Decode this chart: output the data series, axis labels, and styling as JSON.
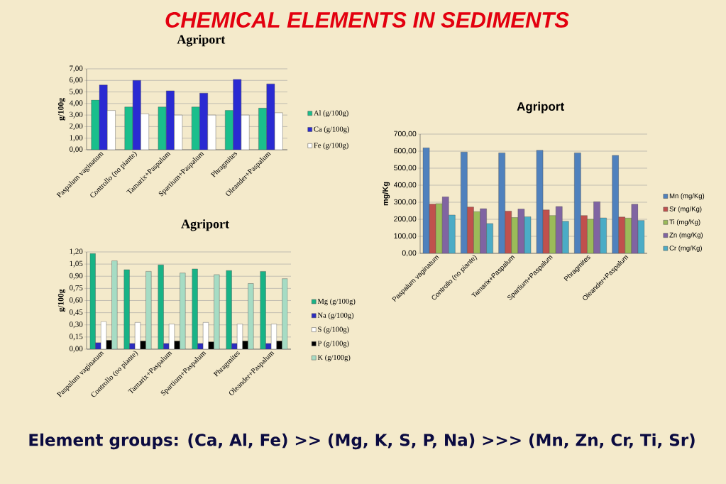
{
  "chart_data": [
    {
      "type": "other",
      "title": "CHEMICAL ELEMENTS IN SEDIMENTS",
      "annotations": [
        "Element groups: (Ca, Al, Fe) >> (Mg, K, S, P, Na) >>> (Mn, Zn, Cr, Ti, Sr)"
      ]
    },
    {
      "type": "bar",
      "title": "Agriport",
      "ylabel": "g/100g",
      "categories": [
        "Paspalum vaginatum",
        "Controllo (no piante)",
        "Tamarix+Paspalum",
        "Spartium+Paspalum",
        "Phragmites",
        "Oleander+Paspalum"
      ],
      "series": [
        {
          "name": "Al (g/100g)",
          "color": "#1abf8c",
          "values": [
            4.3,
            3.7,
            3.7,
            3.7,
            3.4,
            3.6
          ]
        },
        {
          "name": "Ca (g/100g)",
          "color": "#2a2ad2",
          "values": [
            5.6,
            6.0,
            5.1,
            4.9,
            6.1,
            5.7
          ]
        },
        {
          "name": "Fe (g/100g)",
          "color": "#ffffff",
          "values": [
            3.4,
            3.1,
            3.0,
            3.0,
            3.0,
            3.2
          ]
        }
      ],
      "ylim": [
        0,
        7
      ],
      "yticks": [
        {
          "value": 0,
          "label": "0,00"
        },
        {
          "value": 1,
          "label": "1,00"
        },
        {
          "value": 2,
          "label": "2,00"
        },
        {
          "value": 3,
          "label": "3,00"
        },
        {
          "value": 4,
          "label": "4,00"
        },
        {
          "value": 5,
          "label": "5,00"
        },
        {
          "value": 6,
          "label": "6,00"
        },
        {
          "value": 7,
          "label": "7,00"
        }
      ],
      "grid": "y",
      "legend": "right"
    },
    {
      "type": "bar",
      "title": "Agriport",
      "ylabel": "g/100g",
      "categories": [
        "Paspalum vaginatum",
        "Controllo (no piante)",
        "Tamarix+Paspalum",
        "Spartium+Paspalum",
        "Phragmites",
        "Oleander+Paspalum"
      ],
      "series": [
        {
          "name": "Mg (g/100g)",
          "color": "#18b386",
          "values": [
            1.18,
            0.98,
            1.04,
            0.99,
            0.97,
            0.96
          ]
        },
        {
          "name": "Na (g/100g)",
          "color": "#2c2cc0",
          "values": [
            0.08,
            0.07,
            0.07,
            0.07,
            0.07,
            0.07
          ]
        },
        {
          "name": "S (g/100g)",
          "color": "#ffffff",
          "values": [
            0.34,
            0.33,
            0.31,
            0.33,
            0.31,
            0.31
          ]
        },
        {
          "name": "P (g/100g)",
          "color": "#000000",
          "values": [
            0.11,
            0.1,
            0.1,
            0.09,
            0.1,
            0.1
          ]
        },
        {
          "name": "K (g/100g)",
          "color": "#a6dcc4",
          "values": [
            1.09,
            0.96,
            0.94,
            0.92,
            0.81,
            0.87
          ]
        }
      ],
      "ylim": [
        0,
        1.2
      ],
      "yticks": [
        {
          "value": 0,
          "label": "0,00"
        },
        {
          "value": 0.15,
          "label": "0,15"
        },
        {
          "value": 0.3,
          "label": "0,30"
        },
        {
          "value": 0.45,
          "label": "0,45"
        },
        {
          "value": 0.6,
          "label": "0,60"
        },
        {
          "value": 0.75,
          "label": "0,75"
        },
        {
          "value": 0.9,
          "label": "0,90"
        },
        {
          "value": 1.05,
          "label": "1,05"
        },
        {
          "value": 1.2,
          "label": "1,20"
        }
      ],
      "grid": "y",
      "legend": "right"
    },
    {
      "type": "bar",
      "title": "Agriport",
      "ylabel": "mg/Kg",
      "categories": [
        "Paspalum vaginatum",
        "Controllo (no piante)",
        "Tamarix+Paspalum",
        "Spartium+Paspalum",
        "Phragmites",
        "Oleander+Paspalum"
      ],
      "series": [
        {
          "name": "Mn (mg/Kg)",
          "color": "#4f81bd",
          "values": [
            620,
            595,
            590,
            605,
            590,
            575
          ]
        },
        {
          "name": "Sr (mg/Kg)",
          "color": "#c0504d",
          "values": [
            290,
            272,
            248,
            255,
            222,
            213
          ]
        },
        {
          "name": "Ti (mg/Kg)",
          "color": "#9bbb59",
          "values": [
            292,
            245,
            210,
            222,
            200,
            207
          ]
        },
        {
          "name": "Zn (mg/Kg)",
          "color": "#8064a2",
          "values": [
            332,
            262,
            260,
            275,
            303,
            288
          ]
        },
        {
          "name": "Cr (mg/Kg)",
          "color": "#4bacc6",
          "values": [
            225,
            175,
            215,
            188,
            208,
            193
          ]
        }
      ],
      "ylim": [
        0,
        700
      ],
      "yticks": [
        {
          "value": 0,
          "label": "0,00"
        },
        {
          "value": 100,
          "label": "100,00"
        },
        {
          "value": 200,
          "label": "200,00"
        },
        {
          "value": 300,
          "label": "300,00"
        },
        {
          "value": 400,
          "label": "400,00"
        },
        {
          "value": 500,
          "label": "500,00"
        },
        {
          "value": 600,
          "label": "600,00"
        },
        {
          "value": 700,
          "label": "700,00"
        }
      ],
      "grid": "y",
      "legend": "right"
    }
  ]
}
